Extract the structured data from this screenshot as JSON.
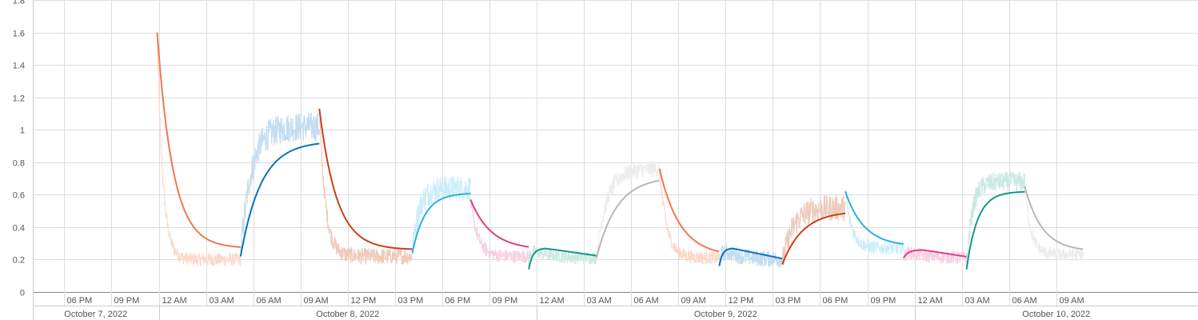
{
  "chart_data": {
    "type": "line",
    "title": "",
    "xlabel": "",
    "ylabel": "",
    "ylim": [
      0,
      1.8
    ],
    "yticks": [
      {
        "v": 0,
        "label": "0"
      },
      {
        "v": 0.2,
        "label": "0.2"
      },
      {
        "v": 0.4,
        "label": "0.4"
      },
      {
        "v": 0.6,
        "label": "0.6"
      },
      {
        "v": 0.8,
        "label": "0.8"
      },
      {
        "v": 1,
        "label": "1"
      },
      {
        "v": 1.2,
        "label": "1.2"
      },
      {
        "v": 1.4,
        "label": "1.4"
      },
      {
        "v": 1.6,
        "label": "1.6"
      },
      {
        "v": 1.8,
        "label": "1.8"
      }
    ],
    "xlim_hours": [
      -8,
      66
    ],
    "xticks": [
      {
        "h": -6,
        "label": "06 PM"
      },
      {
        "h": -3,
        "label": "09 PM"
      },
      {
        "h": 0,
        "label": "12 AM"
      },
      {
        "h": 3,
        "label": "03 AM"
      },
      {
        "h": 6,
        "label": "06 AM"
      },
      {
        "h": 9,
        "label": "09 AM"
      },
      {
        "h": 12,
        "label": "12 PM"
      },
      {
        "h": 15,
        "label": "03 PM"
      },
      {
        "h": 18,
        "label": "06 PM"
      },
      {
        "h": 21,
        "label": "09 PM"
      },
      {
        "h": 24,
        "label": "12 AM"
      },
      {
        "h": 27,
        "label": "03 AM"
      },
      {
        "h": 30,
        "label": "06 AM"
      },
      {
        "h": 33,
        "label": "09 AM"
      },
      {
        "h": 36,
        "label": "12 PM"
      },
      {
        "h": 39,
        "label": "03 PM"
      },
      {
        "h": 42,
        "label": "06 PM"
      },
      {
        "h": 45,
        "label": "09 PM"
      },
      {
        "h": 48,
        "label": "12 AM"
      },
      {
        "h": 51,
        "label": "03 AM"
      },
      {
        "h": 54,
        "label": "06 AM"
      },
      {
        "h": 57,
        "label": "09 AM"
      }
    ],
    "dates": [
      {
        "from": -8,
        "to": 0,
        "label": "October 7, 2022"
      },
      {
        "from": 0,
        "to": 24,
        "label": "October 8, 2022"
      },
      {
        "from": 24,
        "to": 48,
        "label": "October 9, 2022"
      },
      {
        "from": 48,
        "to": 66,
        "label": "October 10, 2022"
      }
    ],
    "grid": true,
    "legend": "none",
    "series": [
      {
        "color": "#f07850",
        "light": "#fbd8ca",
        "start": -0.1,
        "end": 5.2,
        "shape": "decay",
        "v0": 1.6,
        "vInf": 0.27,
        "tau": 1.0,
        "raw": 0.2,
        "rawNoise": 0.04
      },
      {
        "color": "#0a72bd",
        "light": "#c3dcf0",
        "start": 5.2,
        "end": 10.2,
        "shape": "rise",
        "v0": 0.22,
        "vInf": 0.93,
        "tau": 1.3,
        "raw": 1.02,
        "rawNoise": 0.09
      },
      {
        "color": "#c8401a",
        "light": "#eccbbb",
        "start": 10.2,
        "end": 16.1,
        "shape": "decay",
        "v0": 1.13,
        "vInf": 0.26,
        "tau": 1.1,
        "raw": 0.22,
        "rawNoise": 0.05
      },
      {
        "color": "#2ab0e2",
        "light": "#cbeef9",
        "start": 16.1,
        "end": 19.8,
        "shape": "rise",
        "v0": 0.24,
        "vInf": 0.61,
        "tau": 0.8,
        "raw": 0.64,
        "rawNoise": 0.08
      },
      {
        "color": "#e03d86",
        "light": "#f8cfe2",
        "start": 19.8,
        "end": 23.5,
        "shape": "decay",
        "v0": 0.57,
        "vInf": 0.26,
        "tau": 1.3,
        "raw": 0.22,
        "rawNoise": 0.04
      },
      {
        "color": "#129a86",
        "light": "#cbe9e2",
        "start": 23.5,
        "end": 27.8,
        "shape": "hump",
        "v0": 0.14,
        "vInf": 0.21,
        "peak": 0.27,
        "tau": 0.5,
        "raw": 0.21,
        "rawNoise": 0.04
      },
      {
        "color": "#b8b8b8",
        "light": "#ececec",
        "start": 27.8,
        "end": 31.8,
        "shape": "rise",
        "v0": 0.21,
        "vInf": 0.71,
        "tau": 1.3,
        "raw": 0.76,
        "rawNoise": 0.05
      },
      {
        "color": "#f07850",
        "light": "#fbd8ca",
        "start": 31.8,
        "end": 35.6,
        "shape": "decay",
        "v0": 0.76,
        "vInf": 0.22,
        "tau": 1.3,
        "raw": 0.21,
        "rawNoise": 0.04
      },
      {
        "color": "#0a72bd",
        "light": "#c3dcf0",
        "start": 35.6,
        "end": 39.6,
        "shape": "hump",
        "v0": 0.16,
        "vInf": 0.19,
        "peak": 0.27,
        "tau": 0.4,
        "raw": 0.2,
        "rawNoise": 0.05
      },
      {
        "color": "#c8401a",
        "light": "#eccbbb",
        "start": 39.6,
        "end": 43.6,
        "shape": "rise",
        "v0": 0.17,
        "vInf": 0.5,
        "tau": 1.3,
        "raw": 0.52,
        "rawNoise": 0.08
      },
      {
        "color": "#2ab0e2",
        "light": "#cbeef9",
        "start": 43.6,
        "end": 47.3,
        "shape": "decay",
        "v0": 0.62,
        "vInf": 0.28,
        "tau": 1.2,
        "raw": 0.27,
        "rawNoise": 0.04
      },
      {
        "color": "#e03d86",
        "light": "#f8cfe2",
        "start": 47.3,
        "end": 51.3,
        "shape": "hump",
        "v0": 0.21,
        "vInf": 0.2,
        "peak": 0.26,
        "tau": 0.6,
        "raw": 0.21,
        "rawNoise": 0.04
      },
      {
        "color": "#129a86",
        "light": "#cbe9e2",
        "start": 51.3,
        "end": 55.0,
        "shape": "rise",
        "v0": 0.14,
        "vInf": 0.62,
        "tau": 0.7,
        "raw": 0.68,
        "rawNoise": 0.06
      },
      {
        "color": "#b8b8b8",
        "light": "#ececec",
        "start": 55.0,
        "end": 58.7,
        "shape": "decay",
        "v0": 0.65,
        "vInf": 0.25,
        "tau": 1.1,
        "raw": 0.23,
        "rawNoise": 0.04
      }
    ]
  }
}
